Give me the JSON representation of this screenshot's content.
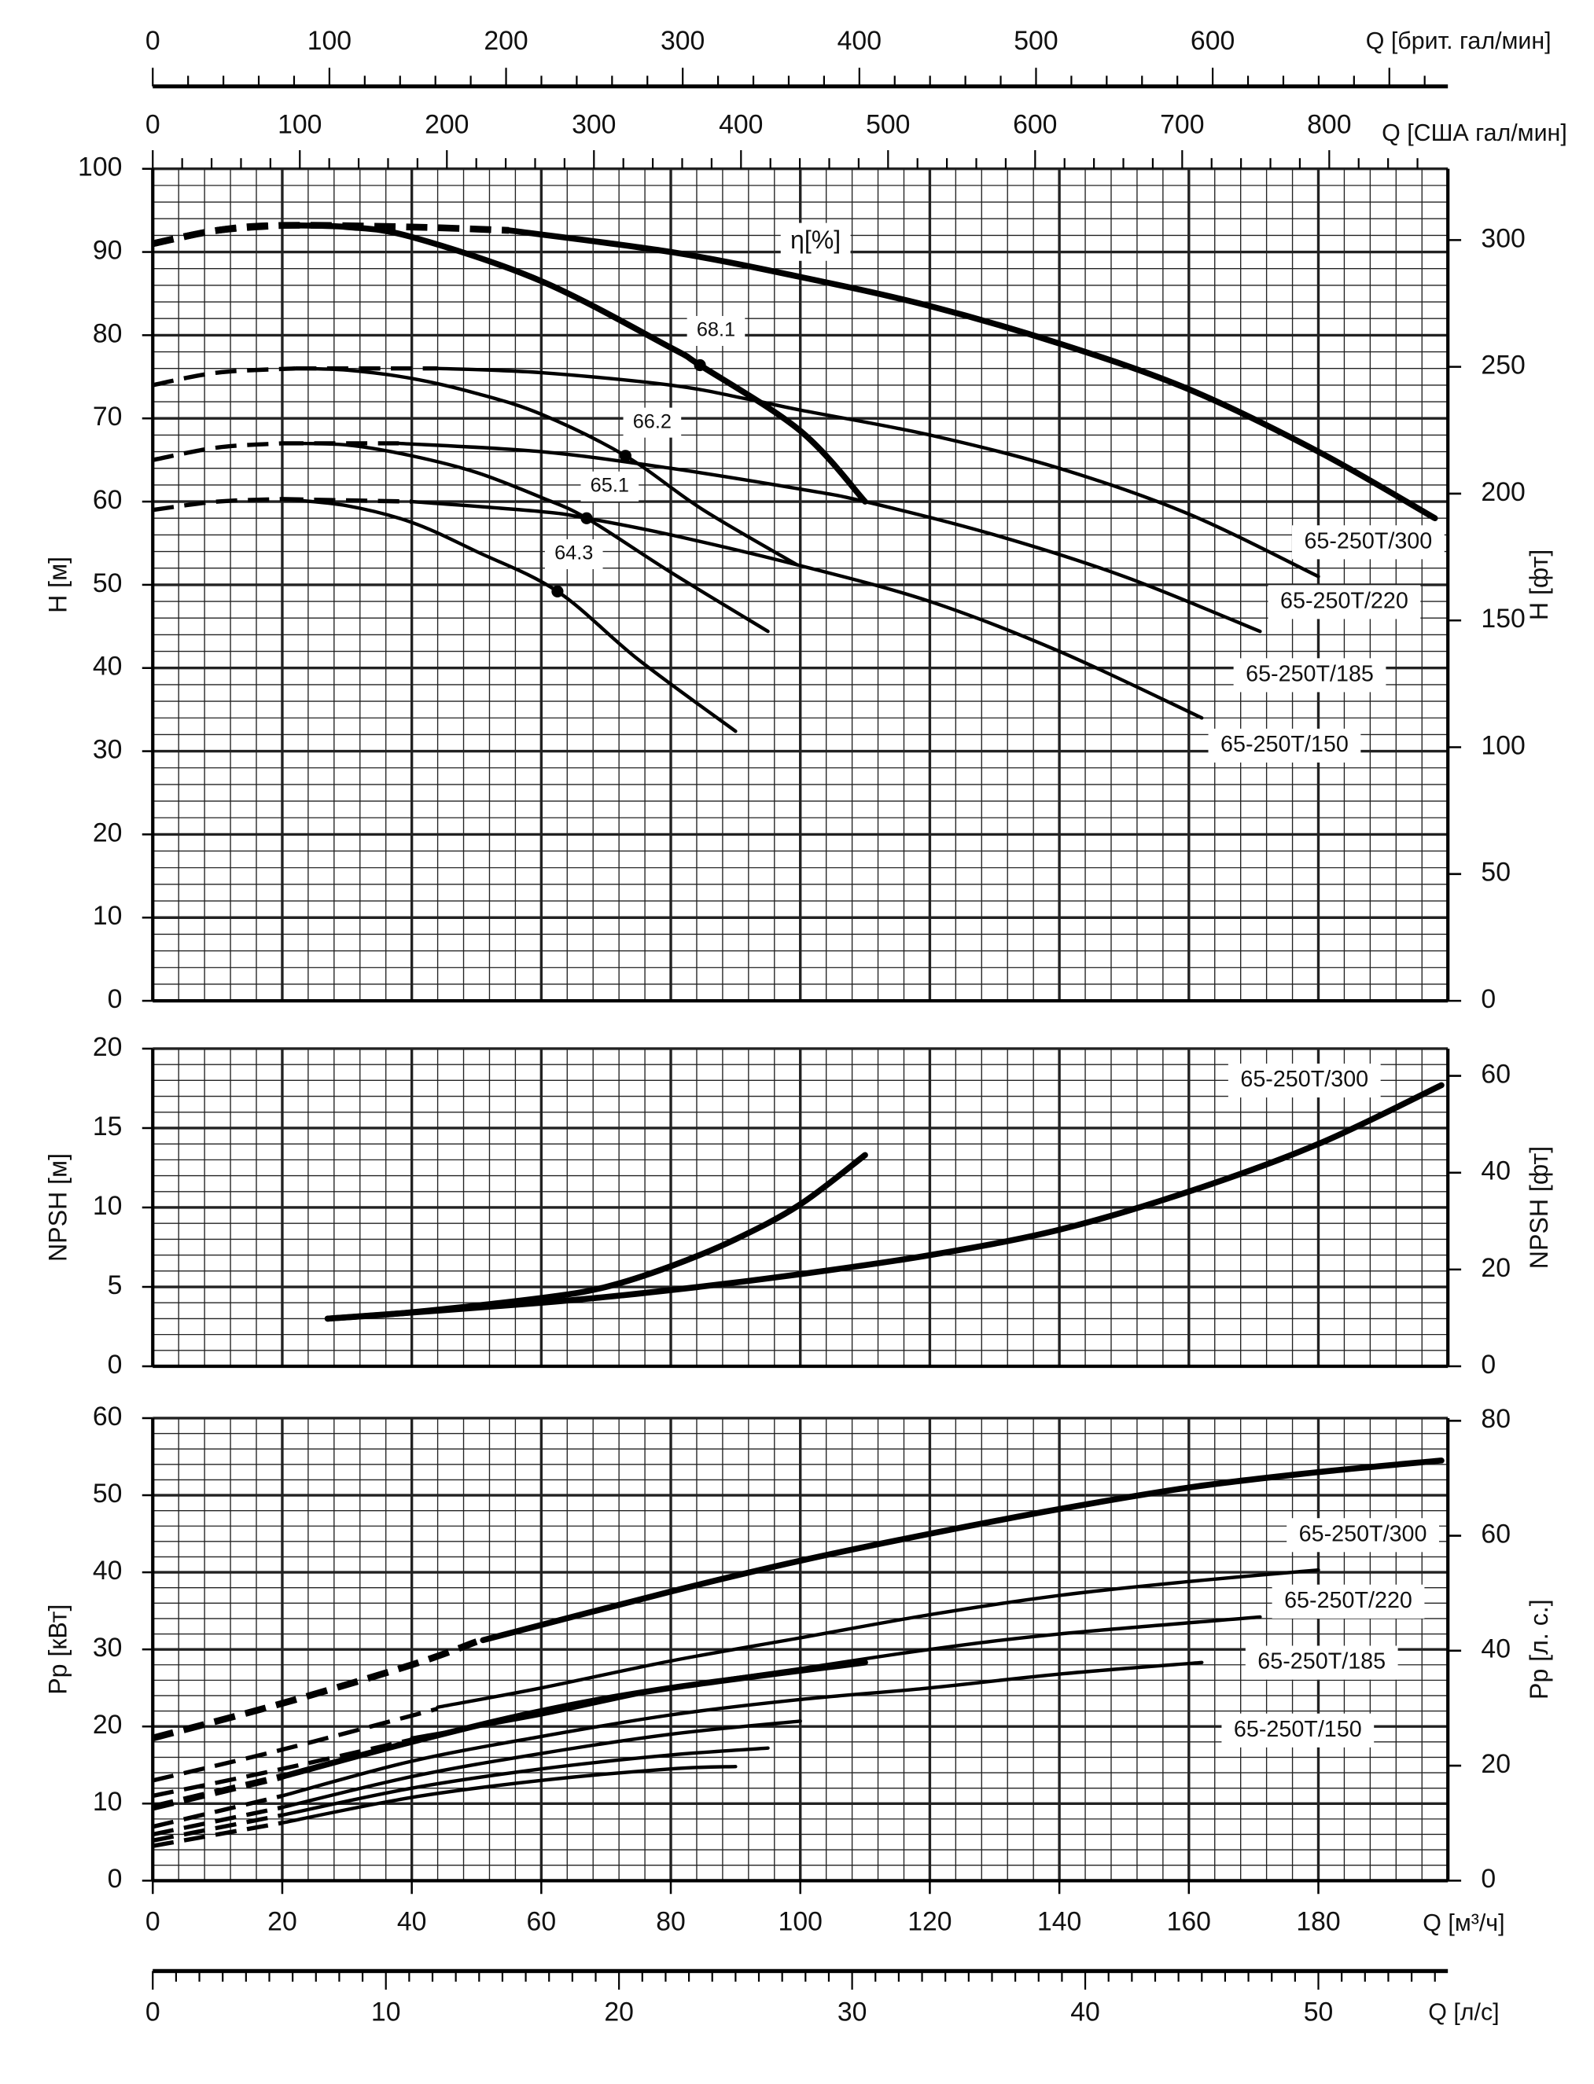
{
  "chart_data": {
    "type": "line",
    "colors": {
      "line": "#000000",
      "grid": "#222222",
      "background": "#ffffff"
    },
    "x": {
      "label": "Q [м³/ч]",
      "range": [
        0,
        200
      ],
      "ticks": [
        0,
        20,
        40,
        60,
        80,
        100,
        120,
        140,
        160,
        180
      ],
      "secondary_axes": [
        {
          "label": "Q [л/с]",
          "factor": 3.6,
          "ticks": [
            0,
            10,
            20,
            30,
            40,
            50
          ]
        },
        {
          "label": "Q [брит. гал/мин]",
          "factor": 0.2728,
          "ticks": [
            0,
            100,
            200,
            300,
            400,
            500,
            600
          ]
        },
        {
          "label": "Q [США гал/мин]",
          "factor": 0.2271,
          "ticks": [
            0,
            100,
            200,
            300,
            400,
            500,
            600,
            700,
            800
          ]
        }
      ]
    },
    "panels": {
      "head": {
        "ylabel": "H [м]",
        "ylim": [
          0,
          100
        ],
        "yticks": [
          0,
          10,
          20,
          30,
          40,
          50,
          60,
          70,
          80,
          90,
          100
        ],
        "ylabel_right": "H [фт]",
        "right_factor": 3.281,
        "yticks_right": [
          0,
          50,
          100,
          150,
          200,
          250,
          300
        ],
        "efficiency_label": "η[%]",
        "series": [
          {
            "thick": true,
            "dash": [
              [
                0,
                91
              ],
              [
                10,
                92.6
              ],
              [
                20,
                93.2
              ],
              [
                40,
                93
              ],
              [
                55,
                92.6
              ]
            ],
            "solid": [
              [
                55,
                92.6
              ],
              [
                80,
                90
              ],
              [
                100,
                87
              ],
              [
                120,
                83.5
              ],
              [
                140,
                79
              ],
              [
                160,
                73.5
              ],
              [
                180,
                66
              ],
              [
                198,
                58
              ]
            ]
          },
          {
            "thick": true,
            "dash": [
              [
                0,
                91
              ],
              [
                10,
                92.6
              ],
              [
                20,
                93.2
              ]
            ],
            "solid": [
              [
                20,
                93.2
              ],
              [
                30,
                93
              ],
              [
                40,
                91.8
              ],
              [
                60,
                86.5
              ],
              [
                80,
                78.5
              ],
              [
                84.5,
                76.4
              ],
              [
                100,
                68.5
              ],
              [
                110,
                60
              ]
            ]
          },
          {
            "thick": false,
            "dash": [
              [
                0,
                74
              ],
              [
                10,
                75.5
              ],
              [
                22,
                76
              ]
            ],
            "solid": [
              [
                22,
                76
              ],
              [
                30,
                75.8
              ],
              [
                40,
                74.8
              ],
              [
                50,
                73
              ],
              [
                60,
                70.5
              ],
              [
                73,
                65.5
              ],
              [
                85,
                59
              ],
              [
                99.5,
                52.4
              ]
            ]
          },
          {
            "thick": false,
            "dash": [
              [
                22,
                76
              ],
              [
                44,
                76
              ]
            ],
            "solid": [
              [
                44,
                76
              ],
              [
                60,
                75.5
              ],
              [
                80,
                74
              ],
              [
                92,
                72.3
              ],
              [
                100,
                71
              ],
              [
                120,
                68
              ],
              [
                140,
                64
              ],
              [
                160,
                58.5
              ],
              [
                180,
                51
              ]
            ]
          },
          {
            "thick": false,
            "dash": [
              [
                0,
                65
              ],
              [
                10,
                66.5
              ],
              [
                20,
                67
              ]
            ],
            "solid": [
              [
                20,
                67
              ],
              [
                30,
                66.8
              ],
              [
                40,
                65.5
              ],
              [
                50,
                63.5
              ],
              [
                60,
                60.5
              ],
              [
                67,
                58
              ],
              [
                80,
                51.5
              ],
              [
                95,
                44.4
              ]
            ]
          },
          {
            "thick": false,
            "dash": [
              [
                20,
                67
              ],
              [
                38,
                67
              ]
            ],
            "solid": [
              [
                38,
                67
              ],
              [
                60,
                66
              ],
              [
                80,
                64
              ],
              [
                100,
                61.5
              ],
              [
                110,
                60
              ],
              [
                130,
                56
              ],
              [
                150,
                51
              ],
              [
                171,
                44.4
              ]
            ]
          },
          {
            "thick": false,
            "dash": [
              [
                0,
                59
              ],
              [
                10,
                60
              ],
              [
                20,
                60.3
              ]
            ],
            "solid": [
              [
                20,
                60.3
              ],
              [
                30,
                59.5
              ],
              [
                40,
                57.5
              ],
              [
                50,
                54
              ],
              [
                62.5,
                49.2
              ],
              [
                75,
                41
              ],
              [
                90,
                32.4
              ]
            ]
          },
          {
            "thick": false,
            "dash": [
              [
                20,
                60.3
              ],
              [
                40,
                60
              ]
            ],
            "solid": [
              [
                40,
                60
              ],
              [
                60,
                58.8
              ],
              [
                67,
                58
              ],
              [
                80,
                56
              ],
              [
                99.5,
                52.4
              ],
              [
                120,
                48
              ],
              [
                140,
                42
              ],
              [
                162,
                34
              ]
            ]
          }
        ],
        "efficiency_points": [
          {
            "q": 84.5,
            "h": 76.4,
            "label": "68.1"
          },
          {
            "q": 73,
            "h": 65.5,
            "label": "66.2"
          },
          {
            "q": 67,
            "h": 58,
            "label": "65.1"
          },
          {
            "q": 62.5,
            "h": 49.2,
            "label": "64.3"
          }
        ],
        "curve_labels": [
          "65-250T/300",
          "65-250T/220",
          "65-250T/185",
          "65-250T/150"
        ]
      },
      "npsh": {
        "ylabel": "NPSH [м]",
        "ylim": [
          0,
          20
        ],
        "yticks": [
          0,
          5,
          10,
          15,
          20
        ],
        "ylabel_right": "NPSH [фт]",
        "right_factor": 3.281,
        "yticks_right": [
          0,
          20,
          40,
          60
        ],
        "series": [
          {
            "thick": true,
            "dash": [],
            "solid": [
              [
                27,
                3
              ],
              [
                40,
                3.4
              ],
              [
                60,
                4.3
              ],
              [
                70,
                5
              ],
              [
                80,
                6.3
              ],
              [
                90,
                8
              ],
              [
                100,
                10.2
              ],
              [
                110,
                13.3
              ]
            ]
          },
          {
            "thick": true,
            "dash": [],
            "solid": [
              [
                27,
                3
              ],
              [
                60,
                4
              ],
              [
                80,
                4.8
              ],
              [
                100,
                5.8
              ],
              [
                120,
                7
              ],
              [
                140,
                8.6
              ],
              [
                160,
                11
              ],
              [
                180,
                14
              ],
              [
                199,
                17.7
              ]
            ]
          }
        ],
        "curve_labels": [
          "65-250T/300"
        ]
      },
      "power": {
        "ylabel": "Pp [кВт]",
        "ylim": [
          0,
          60
        ],
        "yticks": [
          0,
          10,
          20,
          30,
          40,
          50,
          60
        ],
        "ylabel_right": "Pp [л. с.]",
        "right_factor": 1.341,
        "yticks_right": [
          0,
          20,
          40,
          60,
          80
        ],
        "series": [
          {
            "thick": true,
            "dash": [
              [
                0,
                18.5
              ],
              [
                20,
                23
              ],
              [
                40,
                28
              ],
              [
                50,
                31
              ]
            ],
            "solid": [
              [
                51,
                31.2
              ],
              [
                80,
                37.5
              ],
              [
                100,
                41.5
              ],
              [
                120,
                45
              ],
              [
                140,
                48.2
              ],
              [
                160,
                51
              ],
              [
                180,
                53
              ],
              [
                199,
                54.5
              ]
            ]
          },
          {
            "thick": false,
            "dash": [
              [
                0,
                13
              ],
              [
                20,
                17
              ],
              [
                44,
                22.3
              ]
            ],
            "solid": [
              [
                44,
                22.5
              ],
              [
                60,
                25
              ],
              [
                80,
                28.5
              ],
              [
                100,
                31.5
              ],
              [
                120,
                34.5
              ],
              [
                140,
                37
              ],
              [
                160,
                38.8
              ],
              [
                180,
                40.3
              ]
            ]
          },
          {
            "thick": false,
            "dash": [
              [
                0,
                11
              ],
              [
                20,
                14.5
              ],
              [
                40,
                18.3
              ]
            ],
            "solid": [
              [
                40,
                18.5
              ],
              [
                60,
                21.5
              ],
              [
                80,
                25
              ],
              [
                100,
                27.5
              ],
              [
                120,
                30
              ],
              [
                140,
                32
              ],
              [
                171,
                34.2
              ]
            ]
          },
          {
            "thick": true,
            "dash": [
              [
                0,
                9.5
              ],
              [
                20,
                13.5
              ]
            ],
            "solid": [
              [
                20,
                13.5
              ],
              [
                40,
                18
              ],
              [
                60,
                22
              ],
              [
                80,
                25
              ],
              [
                110,
                28.3
              ]
            ]
          },
          {
            "thick": false,
            "dash": [
              [
                0,
                7
              ],
              [
                20,
                11
              ]
            ],
            "solid": [
              [
                20,
                11
              ],
              [
                40,
                15.5
              ],
              [
                60,
                18.7
              ],
              [
                80,
                21.5
              ],
              [
                100,
                23.5
              ],
              [
                120,
                25
              ],
              [
                140,
                26.8
              ],
              [
                162,
                28.3
              ]
            ]
          },
          {
            "thick": false,
            "dash": [
              [
                0,
                6
              ],
              [
                20,
                9.5
              ]
            ],
            "solid": [
              [
                20,
                9.5
              ],
              [
                40,
                13.5
              ],
              [
                60,
                16.5
              ],
              [
                80,
                19
              ],
              [
                100,
                20.7
              ]
            ]
          },
          {
            "thick": false,
            "dash": [
              [
                0,
                5.2
              ],
              [
                20,
                8.5
              ]
            ],
            "solid": [
              [
                20,
                8.5
              ],
              [
                40,
                12
              ],
              [
                60,
                14.5
              ],
              [
                80,
                16.3
              ],
              [
                95,
                17.2
              ]
            ]
          },
          {
            "thick": false,
            "dash": [
              [
                0,
                4.5
              ],
              [
                20,
                7.5
              ]
            ],
            "solid": [
              [
                20,
                7.5
              ],
              [
                40,
                10.8
              ],
              [
                60,
                13
              ],
              [
                80,
                14.5
              ],
              [
                90,
                14.8
              ]
            ]
          }
        ],
        "curve_labels": [
          "65-250T/300",
          "65-250T/220",
          "65-250T/185",
          "65-250T/150"
        ]
      }
    }
  }
}
